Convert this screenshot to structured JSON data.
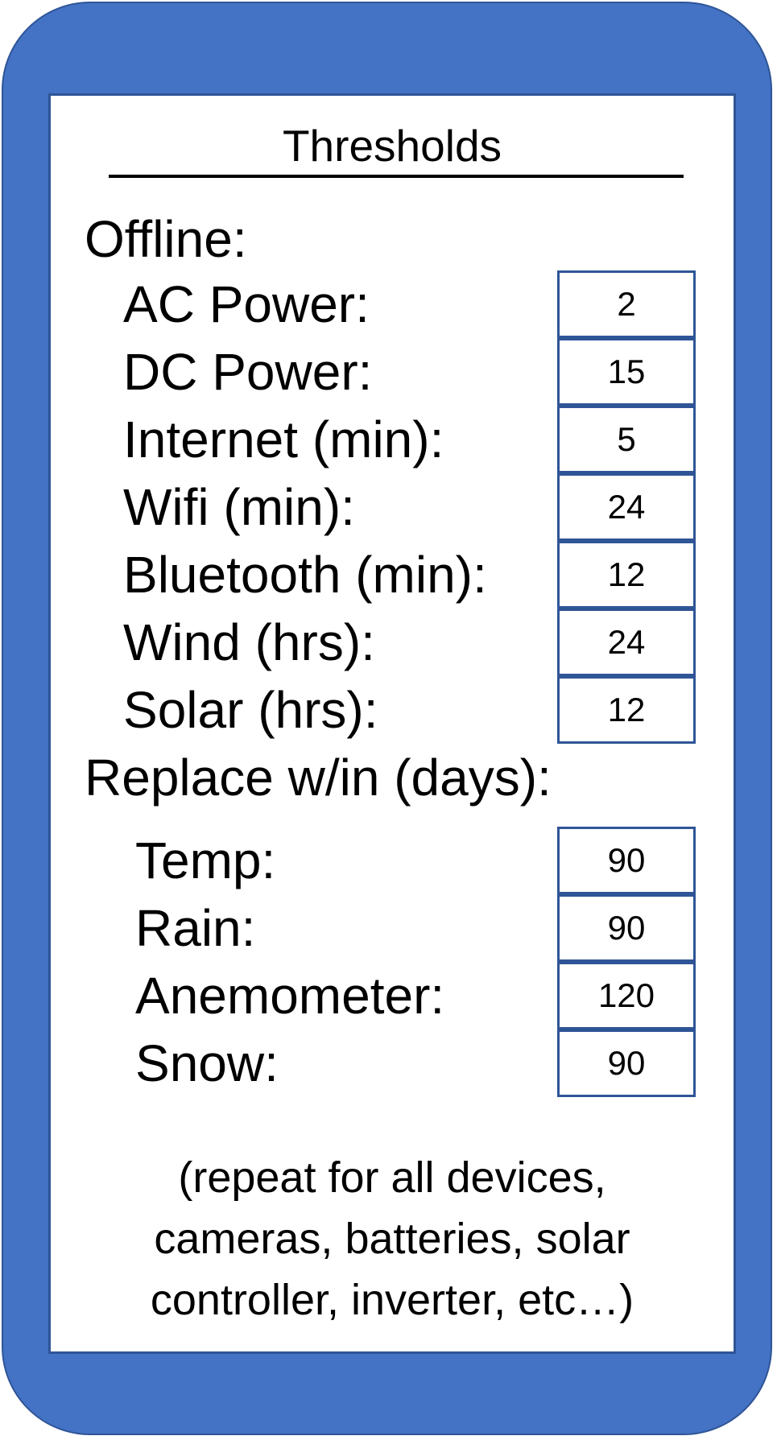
{
  "panel": {
    "title": "Thresholds"
  },
  "offline": {
    "label": "Offline:",
    "items": [
      {
        "label": "AC Power:",
        "value": "2"
      },
      {
        "label": "DC Power:",
        "value": "15"
      },
      {
        "label": "Internet (min):",
        "value": "5"
      },
      {
        "label": "Wifi (min):",
        "value": "24"
      },
      {
        "label": "Bluetooth (min):",
        "value": "12"
      },
      {
        "label": "Wind (hrs):",
        "value": "24"
      },
      {
        "label": "Solar (hrs):",
        "value": "12"
      }
    ]
  },
  "replace": {
    "label": "Replace w/in (days):",
    "items": [
      {
        "label": "Temp:",
        "value": "90"
      },
      {
        "label": "Rain:",
        "value": "90"
      },
      {
        "label": "Anemometer:",
        "value": "120"
      },
      {
        "label": "Snow:",
        "value": "90"
      }
    ]
  },
  "footnote": {
    "line1": "(repeat  for all devices,",
    "line2": "cameras, batteries, solar",
    "line3": "controller, inverter, etc…)"
  }
}
